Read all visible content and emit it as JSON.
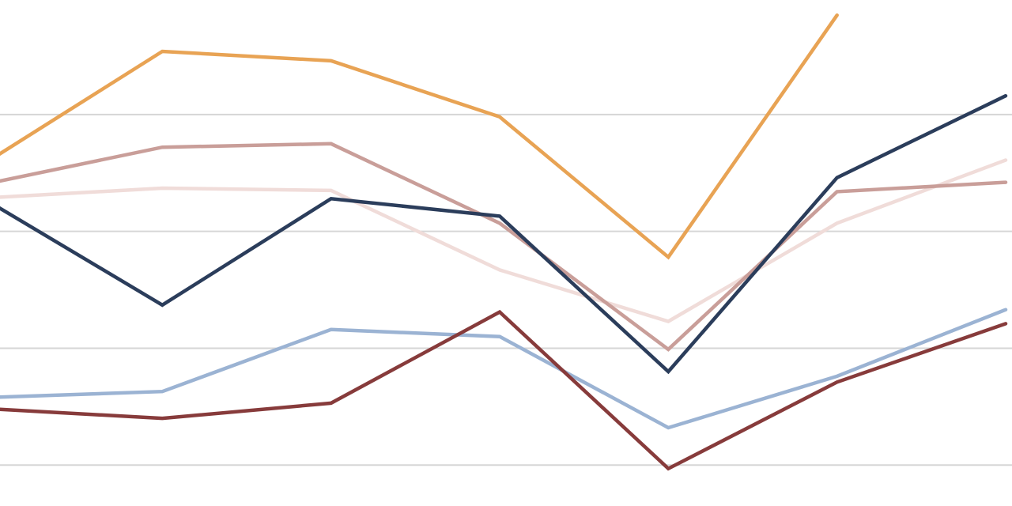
{
  "chart_data": {
    "type": "line",
    "categories": [
      null,
      null,
      null,
      null,
      null,
      null,
      null
    ],
    "series": [
      {
        "color": "#e8a354",
        "values": [
          2.63,
          3.54,
          3.46,
          2.98,
          1.78,
          3.85,
          null
        ]
      },
      {
        "color": "#f0dcd9",
        "values": [
          2.29,
          2.37,
          2.35,
          1.67,
          1.23,
          2.07,
          2.61
        ]
      },
      {
        "color": "#c99e99",
        "values": [
          2.42,
          2.72,
          2.75,
          2.07,
          0.99,
          2.34,
          2.42
        ]
      },
      {
        "color": "#9bb3d3",
        "values": [
          0.58,
          0.63,
          1.16,
          1.1,
          0.32,
          0.76,
          1.33
        ]
      },
      {
        "color": "#873b3b",
        "values": [
          0.48,
          0.4,
          0.53,
          1.31,
          -0.03,
          0.71,
          1.21
        ]
      },
      {
        "color": "#2b3d5b",
        "values": [
          2.23,
          1.37,
          2.28,
          2.13,
          0.8,
          2.46,
          3.16
        ]
      }
    ],
    "ylim": [
      -0.35,
      3.98
    ],
    "yticks": [
      0,
      1,
      2,
      3
    ],
    "grid": true
  }
}
